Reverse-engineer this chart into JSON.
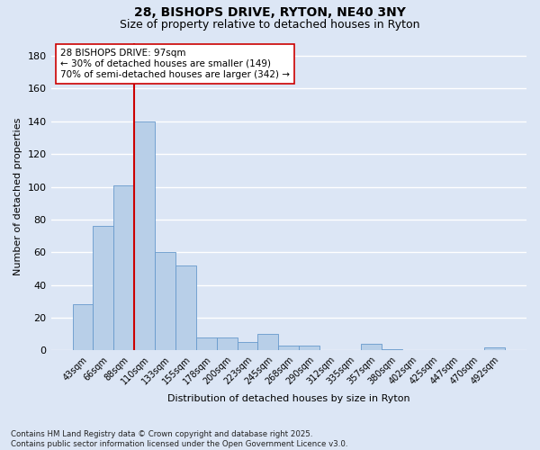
{
  "title1": "28, BISHOPS DRIVE, RYTON, NE40 3NY",
  "title2": "Size of property relative to detached houses in Ryton",
  "xlabel": "Distribution of detached houses by size in Ryton",
  "ylabel": "Number of detached properties",
  "bar_labels": [
    "43sqm",
    "66sqm",
    "88sqm",
    "110sqm",
    "133sqm",
    "155sqm",
    "178sqm",
    "200sqm",
    "223sqm",
    "245sqm",
    "268sqm",
    "290sqm",
    "312sqm",
    "335sqm",
    "357sqm",
    "380sqm",
    "402sqm",
    "425sqm",
    "447sqm",
    "470sqm",
    "492sqm"
  ],
  "bar_values": [
    28,
    76,
    101,
    140,
    60,
    52,
    8,
    8,
    5,
    10,
    3,
    3,
    0,
    0,
    4,
    1,
    0,
    0,
    0,
    0,
    2
  ],
  "bar_color": "#b8cfe8",
  "bar_edge_color": "#6699cc",
  "bg_color": "#dce6f5",
  "grid_color": "#ffffff",
  "vline_x": 2.5,
  "vline_color": "#cc0000",
  "annotation_text": "28 BISHOPS DRIVE: 97sqm\n← 30% of detached houses are smaller (149)\n70% of semi-detached houses are larger (342) →",
  "annotation_box_color": "#ffffff",
  "annotation_box_edge": "#cc0000",
  "footer_text": "Contains HM Land Registry data © Crown copyright and database right 2025.\nContains public sector information licensed under the Open Government Licence v3.0.",
  "ylim": [
    0,
    188
  ],
  "yticks": [
    0,
    20,
    40,
    60,
    80,
    100,
    120,
    140,
    160,
    180
  ]
}
